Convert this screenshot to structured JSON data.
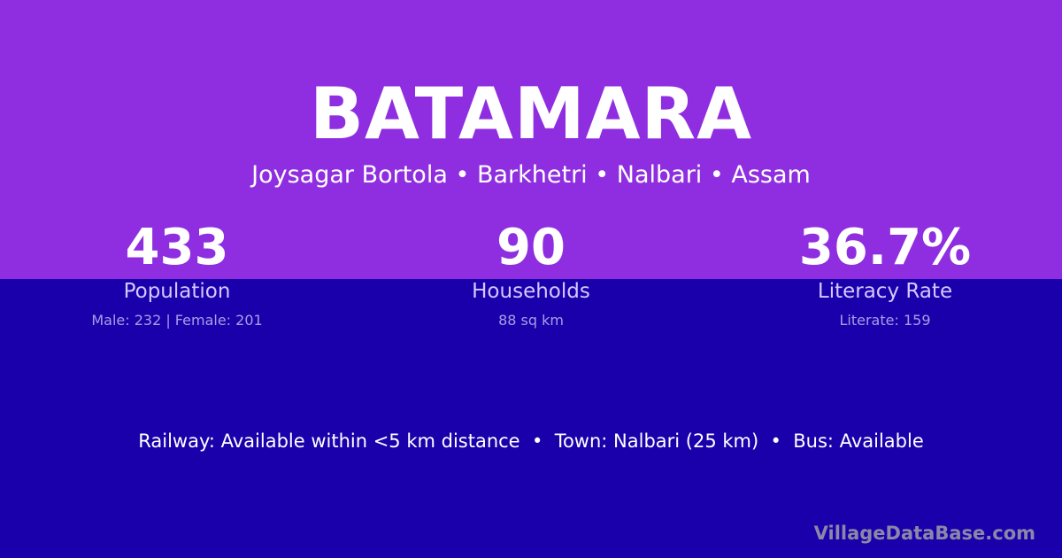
{
  "village": "BATAMARA",
  "location": "Joysagar Bortola • Barkhetri • Nalbari • Assam",
  "stats": [
    {
      "value": "433",
      "label": "Population",
      "detail": "Male: 232 | Female: 201"
    },
    {
      "value": "90",
      "label": "Households",
      "detail": "88 sq km"
    },
    {
      "value": "36.7%",
      "label": "Literacy Rate",
      "detail": "Literate: 159"
    }
  ],
  "transport": "Railway: Available within <5 km distance  •  Town: Nalbari (25 km)  •  Bus: Available",
  "watermark": "VillageDataBase.com",
  "colors": {
    "top": "#8f2ee0",
    "bottom": "#1a00ab"
  }
}
